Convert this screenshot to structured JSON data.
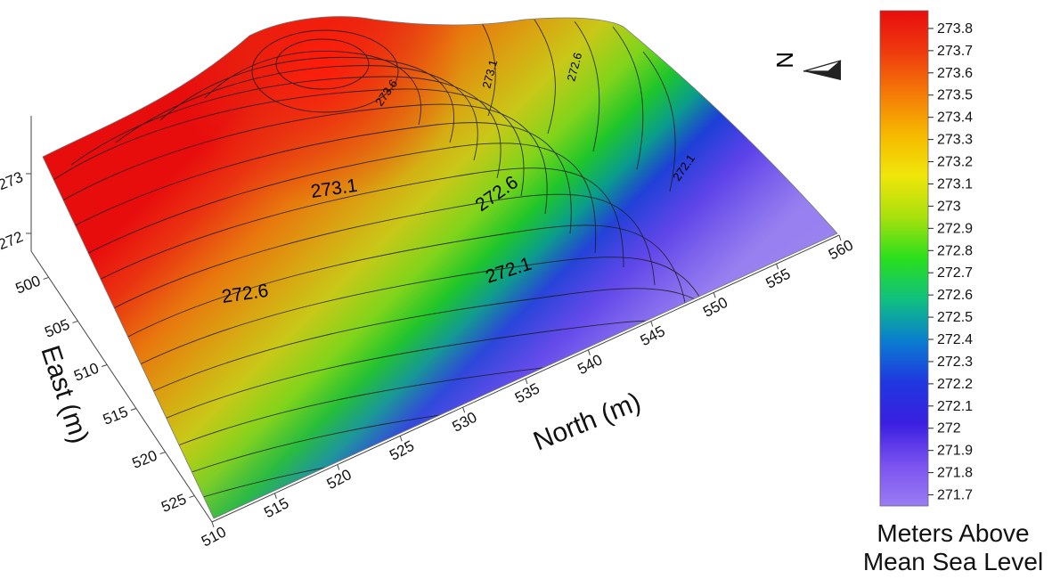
{
  "chart_data": {
    "type": "surface-contour",
    "surface_variable": "Meters Above Mean Sea Level",
    "x_axis": {
      "label": "North (m)",
      "ticks": [
        510,
        515,
        520,
        525,
        530,
        535,
        540,
        545,
        550,
        555,
        560
      ],
      "range": [
        510,
        560
      ]
    },
    "y_axis": {
      "label": "East (m)",
      "ticks": [
        500,
        505,
        510,
        515,
        520,
        525
      ],
      "range": [
        497,
        528
      ]
    },
    "z_axis": {
      "label": "",
      "ticks": [
        272,
        273
      ]
    },
    "contour_labels": [
      "273.6",
      "273.1",
      "272.6",
      "273.1",
      "272.6",
      "272.1",
      "272.6",
      "272.1"
    ],
    "colorbar": {
      "title_lines": [
        "Meters Above",
        "Mean Sea Level"
      ],
      "min": 271.65,
      "max": 273.88,
      "ticks": [
        "273.8",
        "273.7",
        "273.6",
        "273.5",
        "273.4",
        "273.3",
        "273.2",
        "273.1",
        "273",
        "272.9",
        "272.8",
        "272.7",
        "272.6",
        "272.5",
        "272.4",
        "272.3",
        "272.2",
        "272.1",
        "272",
        "271.9",
        "271.8",
        "271.7"
      ],
      "colors": [
        "#9a7cf2",
        "#7b52f0",
        "#3a1fe0",
        "#1f37e0",
        "#0a7dd0",
        "#10c080",
        "#2adf1c",
        "#a8e00d",
        "#f0e60a",
        "#f6b800",
        "#f57a08",
        "#ef3a0e",
        "#e80d0d"
      ]
    },
    "north_arrow": "N"
  }
}
